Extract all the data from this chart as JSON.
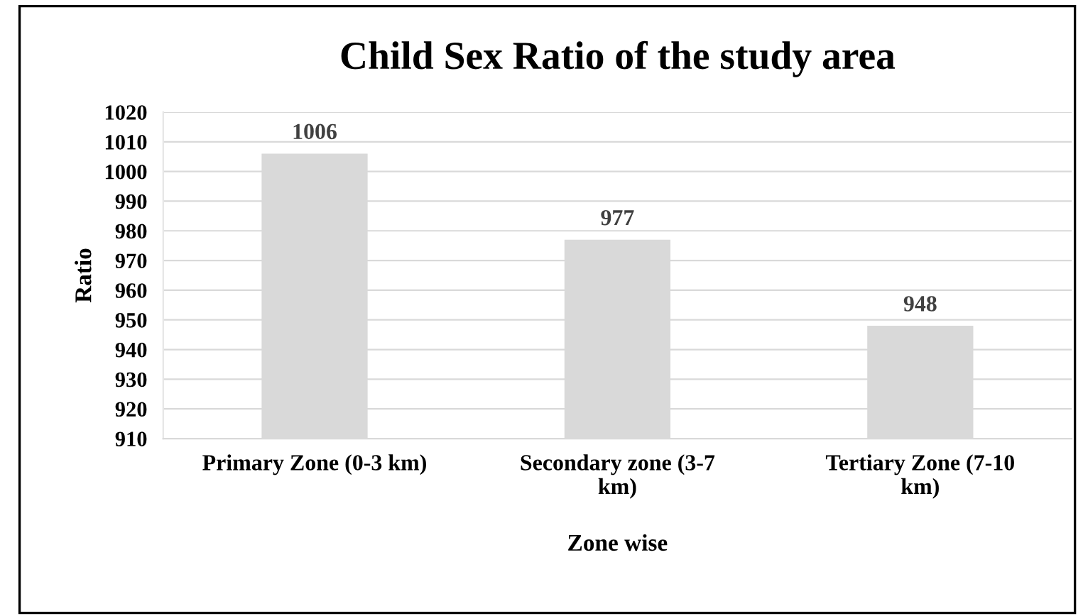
{
  "chart_data": {
    "type": "bar",
    "title": "Child Sex Ratio of the study area",
    "xlabel": "Zone wise",
    "ylabel": "Ratio",
    "categories": [
      "Primary Zone (0-3 km)",
      "Secondary zone (3-7\nkm)",
      "Tertiary Zone (7-10\nkm)"
    ],
    "values": [
      1006,
      977,
      948
    ],
    "color": "#d9d9d9",
    "ylim": [
      910,
      1020
    ],
    "yticks": [
      910,
      920,
      930,
      940,
      950,
      960,
      970,
      980,
      990,
      1000,
      1010,
      1020
    ],
    "grid": "y",
    "data_labels": true,
    "legend": false
  }
}
